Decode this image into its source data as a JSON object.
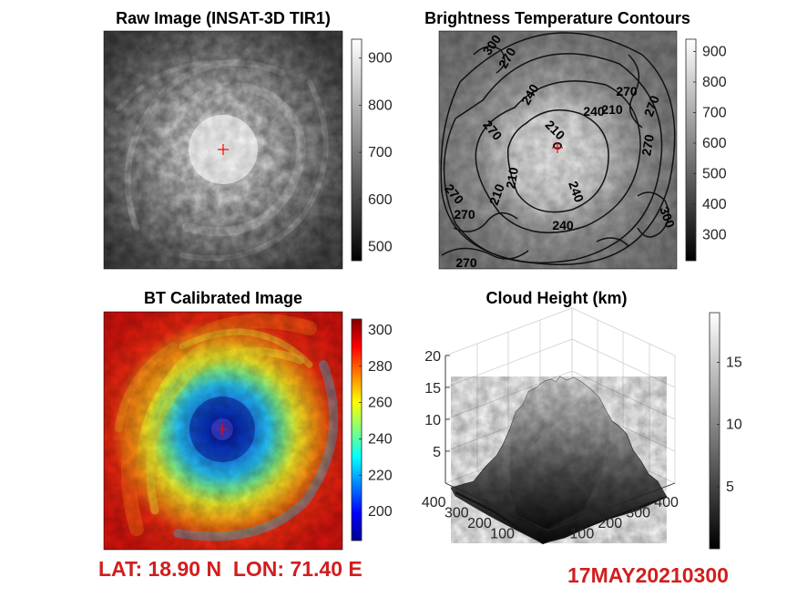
{
  "panels": {
    "raw": {
      "title": "Raw Image (INSAT-3D TIR1)",
      "colorbar_ticks": [
        500,
        600,
        700,
        800,
        900
      ],
      "colorbar_range": [
        470,
        940
      ]
    },
    "contours": {
      "title": "Brightness Temperature Contours",
      "colorbar_ticks": [
        300,
        400,
        500,
        600,
        700,
        800,
        900
      ],
      "colorbar_range": [
        215,
        940
      ],
      "contour_labels": [
        "300",
        "270",
        "240",
        "210",
        "210",
        "240",
        "270",
        "270",
        "270",
        "270",
        "240",
        "210",
        "270",
        "300",
        "270",
        "210",
        "270",
        "240"
      ]
    },
    "bt": {
      "title": "BT Calibrated Image",
      "colorbar_ticks": [
        200,
        220,
        240,
        260,
        280,
        300
      ],
      "colorbar_range": [
        184,
        306
      ]
    },
    "height": {
      "title": "Cloud Height (km)",
      "colorbar_ticks": [
        5,
        10,
        15
      ],
      "colorbar_range": [
        0,
        19
      ]
    }
  },
  "chart_data": [
    {
      "type": "heatmap",
      "title": "Raw Image (INSAT-3D TIR1)",
      "colormap": "gray",
      "clim": [
        470,
        940
      ],
      "center_marker": "+"
    },
    {
      "type": "heatmap",
      "title": "Brightness Temperature Contours",
      "colormap": "gray",
      "clim": [
        215,
        940
      ],
      "contour_levels": [
        210,
        240,
        270,
        300
      ]
    },
    {
      "type": "heatmap",
      "title": "BT Calibrated Image",
      "colormap": "jet",
      "clim": [
        184,
        306
      ],
      "center_marker": "+"
    },
    {
      "type": "surface",
      "title": "Cloud Height (km)",
      "colormap": "gray",
      "zlim": [
        0,
        20
      ],
      "z_ticks": [
        5,
        10,
        15,
        20
      ],
      "y_ticks": [
        100,
        200,
        300,
        400
      ],
      "x_ticks": [
        100,
        200,
        300,
        400
      ],
      "clim": [
        0,
        19
      ]
    }
  ],
  "footer": {
    "location": "LAT: 18.90 N  LON: 71.40 E",
    "datetime": "17MAY20210300"
  },
  "colors": {
    "footer_text": "#d21e1e",
    "marker": "#ff0000"
  }
}
